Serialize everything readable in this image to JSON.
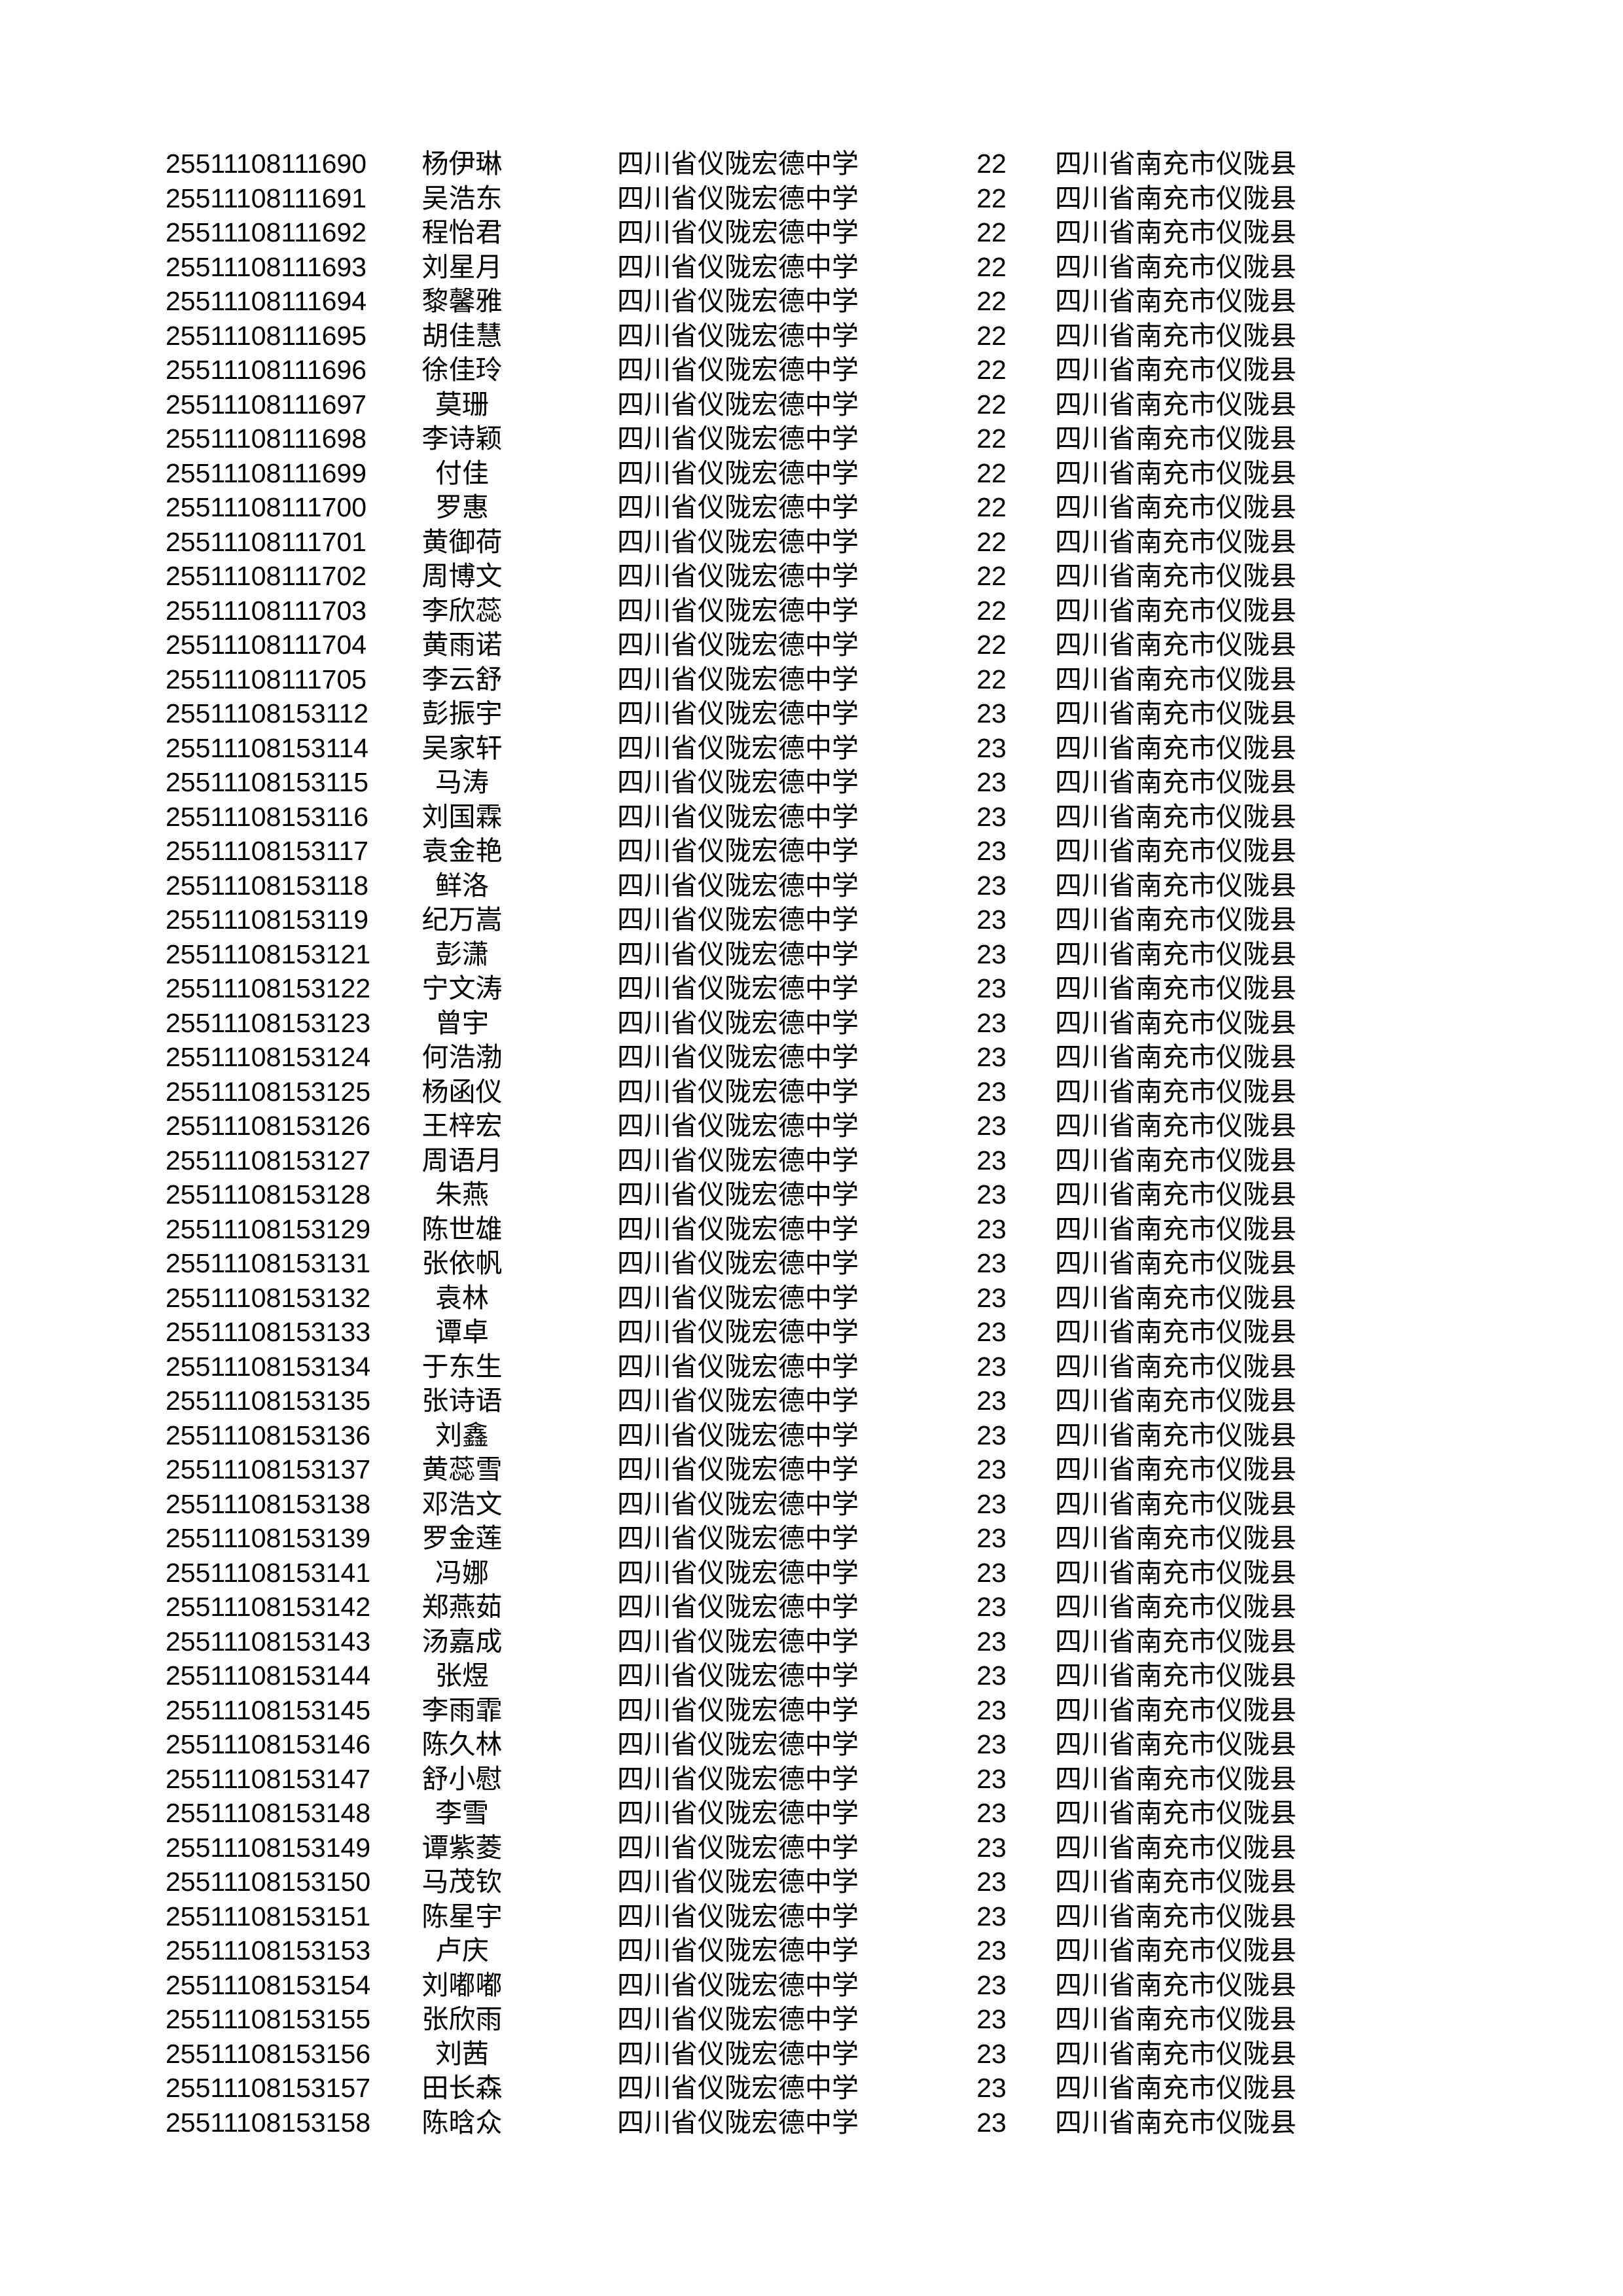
{
  "rows": [
    {
      "id": "25511108111690",
      "name": "杨伊琳",
      "school": "四川省仪陇宏德中学",
      "num": "22",
      "county": "四川省南充市仪陇县"
    },
    {
      "id": "25511108111691",
      "name": "吴浩东",
      "school": "四川省仪陇宏德中学",
      "num": "22",
      "county": "四川省南充市仪陇县"
    },
    {
      "id": "25511108111692",
      "name": "程怡君",
      "school": "四川省仪陇宏德中学",
      "num": "22",
      "county": "四川省南充市仪陇县"
    },
    {
      "id": "25511108111693",
      "name": "刘星月",
      "school": "四川省仪陇宏德中学",
      "num": "22",
      "county": "四川省南充市仪陇县"
    },
    {
      "id": "25511108111694",
      "name": "黎馨雅",
      "school": "四川省仪陇宏德中学",
      "num": "22",
      "county": "四川省南充市仪陇县"
    },
    {
      "id": "25511108111695",
      "name": "胡佳慧",
      "school": "四川省仪陇宏德中学",
      "num": "22",
      "county": "四川省南充市仪陇县"
    },
    {
      "id": "25511108111696",
      "name": "徐佳玲",
      "school": "四川省仪陇宏德中学",
      "num": "22",
      "county": "四川省南充市仪陇县"
    },
    {
      "id": "25511108111697",
      "name": "莫珊",
      "school": "四川省仪陇宏德中学",
      "num": "22",
      "county": "四川省南充市仪陇县"
    },
    {
      "id": "25511108111698",
      "name": "李诗颖",
      "school": "四川省仪陇宏德中学",
      "num": "22",
      "county": "四川省南充市仪陇县"
    },
    {
      "id": "25511108111699",
      "name": "付佳",
      "school": "四川省仪陇宏德中学",
      "num": "22",
      "county": "四川省南充市仪陇县"
    },
    {
      "id": "25511108111700",
      "name": "罗惠",
      "school": "四川省仪陇宏德中学",
      "num": "22",
      "county": "四川省南充市仪陇县"
    },
    {
      "id": "25511108111701",
      "name": "黄御荷",
      "school": "四川省仪陇宏德中学",
      "num": "22",
      "county": "四川省南充市仪陇县"
    },
    {
      "id": "25511108111702",
      "name": "周博文",
      "school": "四川省仪陇宏德中学",
      "num": "22",
      "county": "四川省南充市仪陇县"
    },
    {
      "id": "25511108111703",
      "name": "李欣蕊",
      "school": "四川省仪陇宏德中学",
      "num": "22",
      "county": "四川省南充市仪陇县"
    },
    {
      "id": "25511108111704",
      "name": "黄雨诺",
      "school": "四川省仪陇宏德中学",
      "num": "22",
      "county": "四川省南充市仪陇县"
    },
    {
      "id": "25511108111705",
      "name": "李云舒",
      "school": "四川省仪陇宏德中学",
      "num": "22",
      "county": "四川省南充市仪陇县"
    },
    {
      "id": "25511108153112",
      "name": "彭振宇",
      "school": "四川省仪陇宏德中学",
      "num": "23",
      "county": "四川省南充市仪陇县"
    },
    {
      "id": "25511108153114",
      "name": "吴家轩",
      "school": "四川省仪陇宏德中学",
      "num": "23",
      "county": "四川省南充市仪陇县"
    },
    {
      "id": "25511108153115",
      "name": "马涛",
      "school": "四川省仪陇宏德中学",
      "num": "23",
      "county": "四川省南充市仪陇县"
    },
    {
      "id": "25511108153116",
      "name": "刘国霖",
      "school": "四川省仪陇宏德中学",
      "num": "23",
      "county": "四川省南充市仪陇县"
    },
    {
      "id": "25511108153117",
      "name": "袁金艳",
      "school": "四川省仪陇宏德中学",
      "num": "23",
      "county": "四川省南充市仪陇县"
    },
    {
      "id": "25511108153118",
      "name": "鲜洛",
      "school": "四川省仪陇宏德中学",
      "num": "23",
      "county": "四川省南充市仪陇县"
    },
    {
      "id": "25511108153119",
      "name": "纪万嵩",
      "school": "四川省仪陇宏德中学",
      "num": "23",
      "county": "四川省南充市仪陇县"
    },
    {
      "id": "25511108153121",
      "name": "彭潇",
      "school": "四川省仪陇宏德中学",
      "num": "23",
      "county": "四川省南充市仪陇县"
    },
    {
      "id": "25511108153122",
      "name": "宁文涛",
      "school": "四川省仪陇宏德中学",
      "num": "23",
      "county": "四川省南充市仪陇县"
    },
    {
      "id": "25511108153123",
      "name": "曾宇",
      "school": "四川省仪陇宏德中学",
      "num": "23",
      "county": "四川省南充市仪陇县"
    },
    {
      "id": "25511108153124",
      "name": "何浩渤",
      "school": "四川省仪陇宏德中学",
      "num": "23",
      "county": "四川省南充市仪陇县"
    },
    {
      "id": "25511108153125",
      "name": "杨函仪",
      "school": "四川省仪陇宏德中学",
      "num": "23",
      "county": "四川省南充市仪陇县"
    },
    {
      "id": "25511108153126",
      "name": "王梓宏",
      "school": "四川省仪陇宏德中学",
      "num": "23",
      "county": "四川省南充市仪陇县"
    },
    {
      "id": "25511108153127",
      "name": "周语月",
      "school": "四川省仪陇宏德中学",
      "num": "23",
      "county": "四川省南充市仪陇县"
    },
    {
      "id": "25511108153128",
      "name": "朱燕",
      "school": "四川省仪陇宏德中学",
      "num": "23",
      "county": "四川省南充市仪陇县"
    },
    {
      "id": "25511108153129",
      "name": "陈世雄",
      "school": "四川省仪陇宏德中学",
      "num": "23",
      "county": "四川省南充市仪陇县"
    },
    {
      "id": "25511108153131",
      "name": "张依帆",
      "school": "四川省仪陇宏德中学",
      "num": "23",
      "county": "四川省南充市仪陇县"
    },
    {
      "id": "25511108153132",
      "name": "袁林",
      "school": "四川省仪陇宏德中学",
      "num": "23",
      "county": "四川省南充市仪陇县"
    },
    {
      "id": "25511108153133",
      "name": "谭卓",
      "school": "四川省仪陇宏德中学",
      "num": "23",
      "county": "四川省南充市仪陇县"
    },
    {
      "id": "25511108153134",
      "name": "于东生",
      "school": "四川省仪陇宏德中学",
      "num": "23",
      "county": "四川省南充市仪陇县"
    },
    {
      "id": "25511108153135",
      "name": "张诗语",
      "school": "四川省仪陇宏德中学",
      "num": "23",
      "county": "四川省南充市仪陇县"
    },
    {
      "id": "25511108153136",
      "name": "刘鑫",
      "school": "四川省仪陇宏德中学",
      "num": "23",
      "county": "四川省南充市仪陇县"
    },
    {
      "id": "25511108153137",
      "name": "黄蕊雪",
      "school": "四川省仪陇宏德中学",
      "num": "23",
      "county": "四川省南充市仪陇县"
    },
    {
      "id": "25511108153138",
      "name": "邓浩文",
      "school": "四川省仪陇宏德中学",
      "num": "23",
      "county": "四川省南充市仪陇县"
    },
    {
      "id": "25511108153139",
      "name": "罗金莲",
      "school": "四川省仪陇宏德中学",
      "num": "23",
      "county": "四川省南充市仪陇县"
    },
    {
      "id": "25511108153141",
      "name": "冯娜",
      "school": "四川省仪陇宏德中学",
      "num": "23",
      "county": "四川省南充市仪陇县"
    },
    {
      "id": "25511108153142",
      "name": "郑燕茹",
      "school": "四川省仪陇宏德中学",
      "num": "23",
      "county": "四川省南充市仪陇县"
    },
    {
      "id": "25511108153143",
      "name": "汤嘉成",
      "school": "四川省仪陇宏德中学",
      "num": "23",
      "county": "四川省南充市仪陇县"
    },
    {
      "id": "25511108153144",
      "name": "张煜",
      "school": "四川省仪陇宏德中学",
      "num": "23",
      "county": "四川省南充市仪陇县"
    },
    {
      "id": "25511108153145",
      "name": "李雨霏",
      "school": "四川省仪陇宏德中学",
      "num": "23",
      "county": "四川省南充市仪陇县"
    },
    {
      "id": "25511108153146",
      "name": "陈久林",
      "school": "四川省仪陇宏德中学",
      "num": "23",
      "county": "四川省南充市仪陇县"
    },
    {
      "id": "25511108153147",
      "name": "舒小慰",
      "school": "四川省仪陇宏德中学",
      "num": "23",
      "county": "四川省南充市仪陇县"
    },
    {
      "id": "25511108153148",
      "name": "李雪",
      "school": "四川省仪陇宏德中学",
      "num": "23",
      "county": "四川省南充市仪陇县"
    },
    {
      "id": "25511108153149",
      "name": "谭紫菱",
      "school": "四川省仪陇宏德中学",
      "num": "23",
      "county": "四川省南充市仪陇县"
    },
    {
      "id": "25511108153150",
      "name": "马茂钦",
      "school": "四川省仪陇宏德中学",
      "num": "23",
      "county": "四川省南充市仪陇县"
    },
    {
      "id": "25511108153151",
      "name": "陈星宇",
      "school": "四川省仪陇宏德中学",
      "num": "23",
      "county": "四川省南充市仪陇县"
    },
    {
      "id": "25511108153153",
      "name": "卢庆",
      "school": "四川省仪陇宏德中学",
      "num": "23",
      "county": "四川省南充市仪陇县"
    },
    {
      "id": "25511108153154",
      "name": "刘嘟嘟",
      "school": "四川省仪陇宏德中学",
      "num": "23",
      "county": "四川省南充市仪陇县"
    },
    {
      "id": "25511108153155",
      "name": "张欣雨",
      "school": "四川省仪陇宏德中学",
      "num": "23",
      "county": "四川省南充市仪陇县"
    },
    {
      "id": "25511108153156",
      "name": "刘茜",
      "school": "四川省仪陇宏德中学",
      "num": "23",
      "county": "四川省南充市仪陇县"
    },
    {
      "id": "25511108153157",
      "name": "田长森",
      "school": "四川省仪陇宏德中学",
      "num": "23",
      "county": "四川省南充市仪陇县"
    },
    {
      "id": "25511108153158",
      "name": "陈晗众",
      "school": "四川省仪陇宏德中学",
      "num": "23",
      "county": "四川省南充市仪陇县"
    }
  ]
}
